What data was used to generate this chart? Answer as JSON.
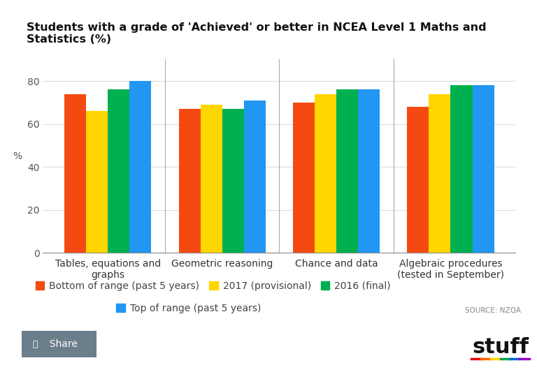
{
  "title": "Students with a grade of 'Achieved' or better in NCEA Level 1 Maths and Statistics (%)",
  "categories": [
    "Tables, equations and\ngraphs",
    "Geometric reasoning",
    "Chance and data",
    "Algebraic procedures\n(tested in September)"
  ],
  "series": {
    "Bottom of range (past 5 years)": [
      74,
      67,
      70,
      68
    ],
    "2017 (provisional)": [
      66,
      69,
      74,
      74
    ],
    "2016 (final)": [
      76,
      67,
      76,
      78
    ],
    "Top of range (past 5 years)": [
      80,
      71,
      76,
      78
    ]
  },
  "colors": {
    "Bottom of range (past 5 years)": "#F44A12",
    "2017 (provisional)": "#FFD600",
    "2016 (final)": "#00B050",
    "Top of range (past 5 years)": "#2196F3"
  },
  "ylabel": "%",
  "ylim": [
    0,
    90
  ],
  "yticks": [
    0,
    20,
    40,
    60,
    80
  ],
  "background_color": "#FFFFFF",
  "source_text": "SOURCE: NZQA",
  "title_fontsize": 11.5,
  "axis_fontsize": 10,
  "legend_fontsize": 10
}
